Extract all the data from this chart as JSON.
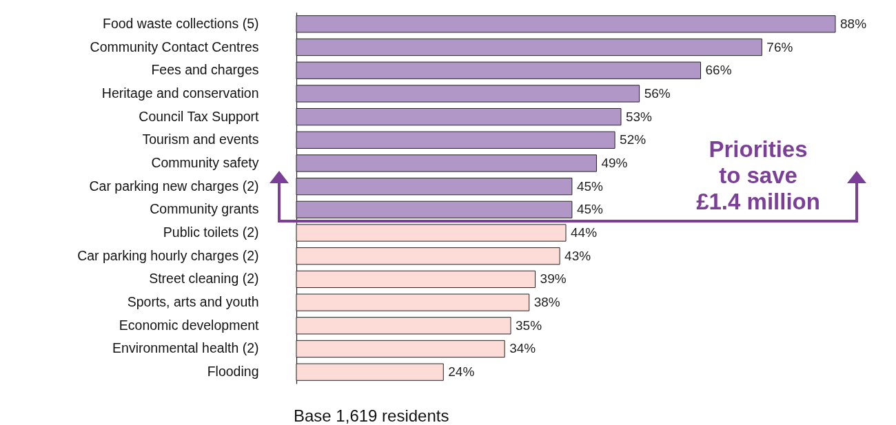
{
  "chart_data": {
    "type": "bar",
    "orientation": "horizontal",
    "categories": [
      "Food waste collections (5)",
      "Community Contact Centres",
      "Fees and charges",
      "Heritage and conservation",
      "Council Tax Support",
      "Tourism and events",
      "Community safety",
      "Car parking new charges (2)",
      "Community grants",
      "Public toilets (2)",
      "Car parking hourly charges (2)",
      "Street cleaning (2)",
      "Sports, arts and youth",
      "Economic development",
      "Environmental health (2)",
      "Flooding"
    ],
    "values": [
      88,
      76,
      66,
      56,
      53,
      52,
      49,
      45,
      45,
      44,
      43,
      39,
      38,
      35,
      34,
      24
    ],
    "value_labels": [
      "88%",
      "76%",
      "66%",
      "56%",
      "53%",
      "52%",
      "49%",
      "45%",
      "45%",
      "44%",
      "43%",
      "39%",
      "38%",
      "35%",
      "34%",
      "24%"
    ],
    "colors": [
      "#b196c8",
      "#b196c8",
      "#b196c8",
      "#b196c8",
      "#b196c8",
      "#b196c8",
      "#b196c8",
      "#b196c8",
      "#b196c8",
      "#fddcd7",
      "#fddcd7",
      "#fddcd7",
      "#fddcd7",
      "#fddcd7",
      "#fddcd7",
      "#fddcd7"
    ],
    "annotations": [
      "Priorities\nto save\n£1.4 million",
      "Base 1,619 residents"
    ]
  }
}
